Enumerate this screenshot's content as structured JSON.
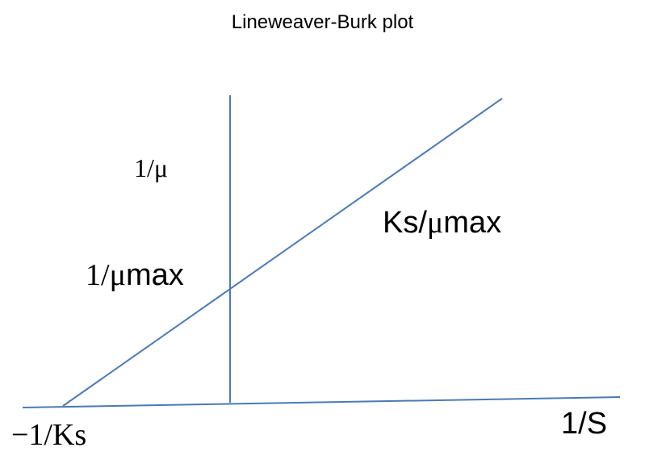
{
  "diagram": {
    "title": "Lineweaver-Burk plot",
    "y_axis_label": {
      "prefix": "1/",
      "mu": "μ",
      "suffix": ""
    },
    "y_intercept_label": {
      "prefix": "1/",
      "mu": "μ",
      "suffix": "max"
    },
    "slope_label": {
      "prefix": "Ks/",
      "mu": "μ",
      "suffix": "max"
    },
    "x_intercept_label": "−1/Ks",
    "x_axis_label": "1/S",
    "line_color": "#4a7ab5",
    "text_color": "#000000"
  }
}
